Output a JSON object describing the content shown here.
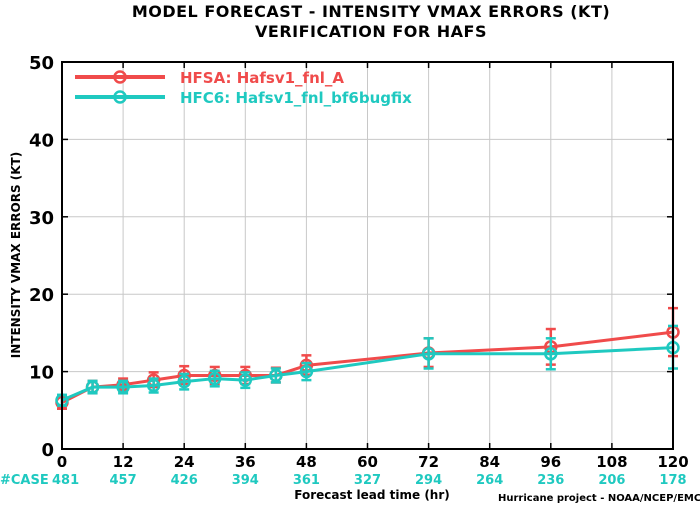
{
  "chart_data": {
    "type": "line",
    "title": "MODEL FORECAST - INTENSITY VMAX ERRORS (KT)",
    "subtitle": "VERIFICATION FOR HAFS",
    "xlabel": "Forecast lead time (hr)",
    "ylabel": "INTENSITY VMAX ERRORS (KT)",
    "xlim": [
      0,
      120
    ],
    "ylim": [
      0,
      50
    ],
    "x_ticks": [
      "0",
      "12",
      "24",
      "36",
      "48",
      "60",
      "72",
      "84",
      "96",
      "108",
      "120"
    ],
    "y_ticks": [
      "0",
      "10",
      "20",
      "30",
      "40",
      "50"
    ],
    "grid": true,
    "legend_position": "top-left",
    "series": [
      {
        "name": "HFSA: Hafsv1_fnl_A",
        "color": "#f04b4b",
        "points": [
          {
            "x": 0,
            "y": 6.0,
            "lo": 5.2,
            "hi": 6.8
          },
          {
            "x": 6,
            "y": 8.0,
            "lo": 7.2,
            "hi": 8.8
          },
          {
            "x": 12,
            "y": 8.3,
            "lo": 7.5,
            "hi": 9.1
          },
          {
            "x": 18,
            "y": 8.9,
            "lo": 8.0,
            "hi": 9.9
          },
          {
            "x": 24,
            "y": 9.5,
            "lo": 8.4,
            "hi": 10.7
          },
          {
            "x": 30,
            "y": 9.5,
            "lo": 8.4,
            "hi": 10.6
          },
          {
            "x": 36,
            "y": 9.5,
            "lo": 8.4,
            "hi": 10.6
          },
          {
            "x": 42,
            "y": 9.5,
            "lo": 8.6,
            "hi": 10.5
          },
          {
            "x": 48,
            "y": 10.8,
            "lo": 9.6,
            "hi": 12.1
          },
          {
            "x": 72,
            "y": 12.4,
            "lo": 10.6,
            "hi": 14.3
          },
          {
            "x": 96,
            "y": 13.2,
            "lo": 10.9,
            "hi": 15.5
          },
          {
            "x": 120,
            "y": 15.1,
            "lo": 12.0,
            "hi": 18.2
          }
        ]
      },
      {
        "name": "HFC6: Hafsv1_fnl_bf6bugfix",
        "color": "#1fc9c0",
        "points": [
          {
            "x": 0,
            "y": 6.3,
            "lo": 5.6,
            "hi": 7.0
          },
          {
            "x": 6,
            "y": 8.0,
            "lo": 7.2,
            "hi": 8.8
          },
          {
            "x": 12,
            "y": 8.0,
            "lo": 7.2,
            "hi": 8.8
          },
          {
            "x": 18,
            "y": 8.2,
            "lo": 7.3,
            "hi": 9.1
          },
          {
            "x": 24,
            "y": 8.7,
            "lo": 7.7,
            "hi": 9.7
          },
          {
            "x": 30,
            "y": 9.1,
            "lo": 8.1,
            "hi": 10.1
          },
          {
            "x": 36,
            "y": 8.9,
            "lo": 7.9,
            "hi": 9.9
          },
          {
            "x": 42,
            "y": 9.5,
            "lo": 8.6,
            "hi": 10.4
          },
          {
            "x": 48,
            "y": 10.0,
            "lo": 8.9,
            "hi": 11.1
          },
          {
            "x": 72,
            "y": 12.3,
            "lo": 10.4,
            "hi": 14.3
          },
          {
            "x": 96,
            "y": 12.3,
            "lo": 10.3,
            "hi": 14.3
          },
          {
            "x": 120,
            "y": 13.1,
            "lo": 10.4,
            "hi": 15.9
          }
        ]
      }
    ],
    "case_counts": {
      "label": "#CASE",
      "hours": [
        0,
        12,
        24,
        36,
        48,
        60,
        72,
        84,
        96,
        108,
        120
      ],
      "values": [
        "481",
        "457",
        "426",
        "394",
        "361",
        "327",
        "294",
        "264",
        "236",
        "206",
        "178"
      ]
    },
    "credit": "Hurricane project - NOAA/NCEP/EMC"
  }
}
